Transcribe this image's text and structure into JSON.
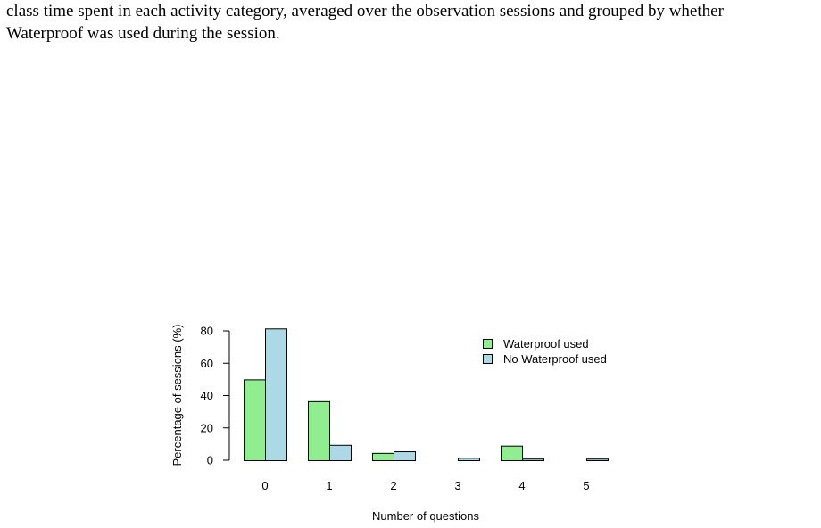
{
  "caption": {
    "line1": "class time spent in each activity category, averaged over the observation sessions and grouped by whether",
    "line2": "Waterproof was used during the session."
  },
  "chart_data": {
    "type": "bar",
    "title": "",
    "xlabel": "Number of questions",
    "ylabel": "Percentage of sessions (%)",
    "ylim": [
      0,
      80
    ],
    "yticks": [
      0,
      20,
      40,
      60,
      80
    ],
    "categories": [
      "0",
      "1",
      "2",
      "3",
      "4",
      "5"
    ],
    "series": [
      {
        "name": "Waterproof used",
        "color": "#90ee90",
        "values": [
          50,
          36.5,
          4.5,
          0,
          9,
          0
        ]
      },
      {
        "name": "No Waterproof used",
        "color": "#add8e6",
        "values": [
          81.5,
          9.5,
          5.5,
          1.5,
          1,
          1
        ]
      }
    ],
    "legend": "top-right",
    "grid": false
  }
}
